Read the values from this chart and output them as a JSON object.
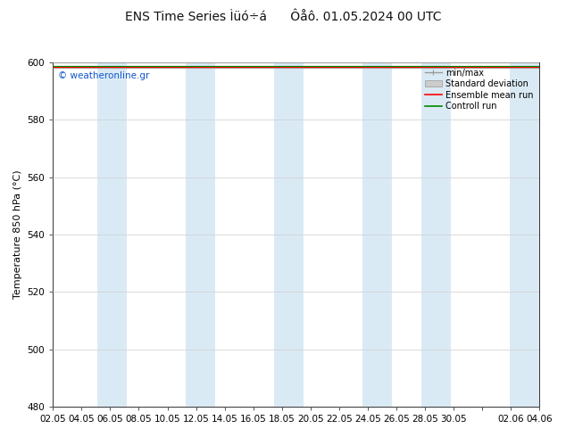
{
  "title": "ENS Time Series Ìüó÷á      Ôåô. 01.05.2024 00 UTC",
  "ylabel": "Temperature 850 hPa (°C)",
  "ylim": [
    480,
    600
  ],
  "yticks": [
    480,
    500,
    520,
    540,
    560,
    580,
    600
  ],
  "xtick_labels": [
    "02.05",
    "04.05",
    "06.05",
    "08.05",
    "10.05",
    "12.05",
    "14.05",
    "16.05",
    "18.05",
    "20.05",
    "22.05",
    "24.05",
    "26.05",
    "28.05",
    "30.05",
    "",
    "02.06",
    "04.06"
  ],
  "bg_color": "#ffffff",
  "plot_bg_color": "#ffffff",
  "band_color": "#daeaf5",
  "mean_color": "#ff0000",
  "control_color": "#008800",
  "watermark": "© weatheronline.gr",
  "legend_labels": [
    "min/max",
    "Standard deviation",
    "Ensemble mean run",
    "Controll run"
  ],
  "title_fontsize": 10,
  "label_fontsize": 8,
  "tick_fontsize": 7.5,
  "grid_color": "#cccccc",
  "spine_color": "#333333",
  "legend_fontsize": 7
}
